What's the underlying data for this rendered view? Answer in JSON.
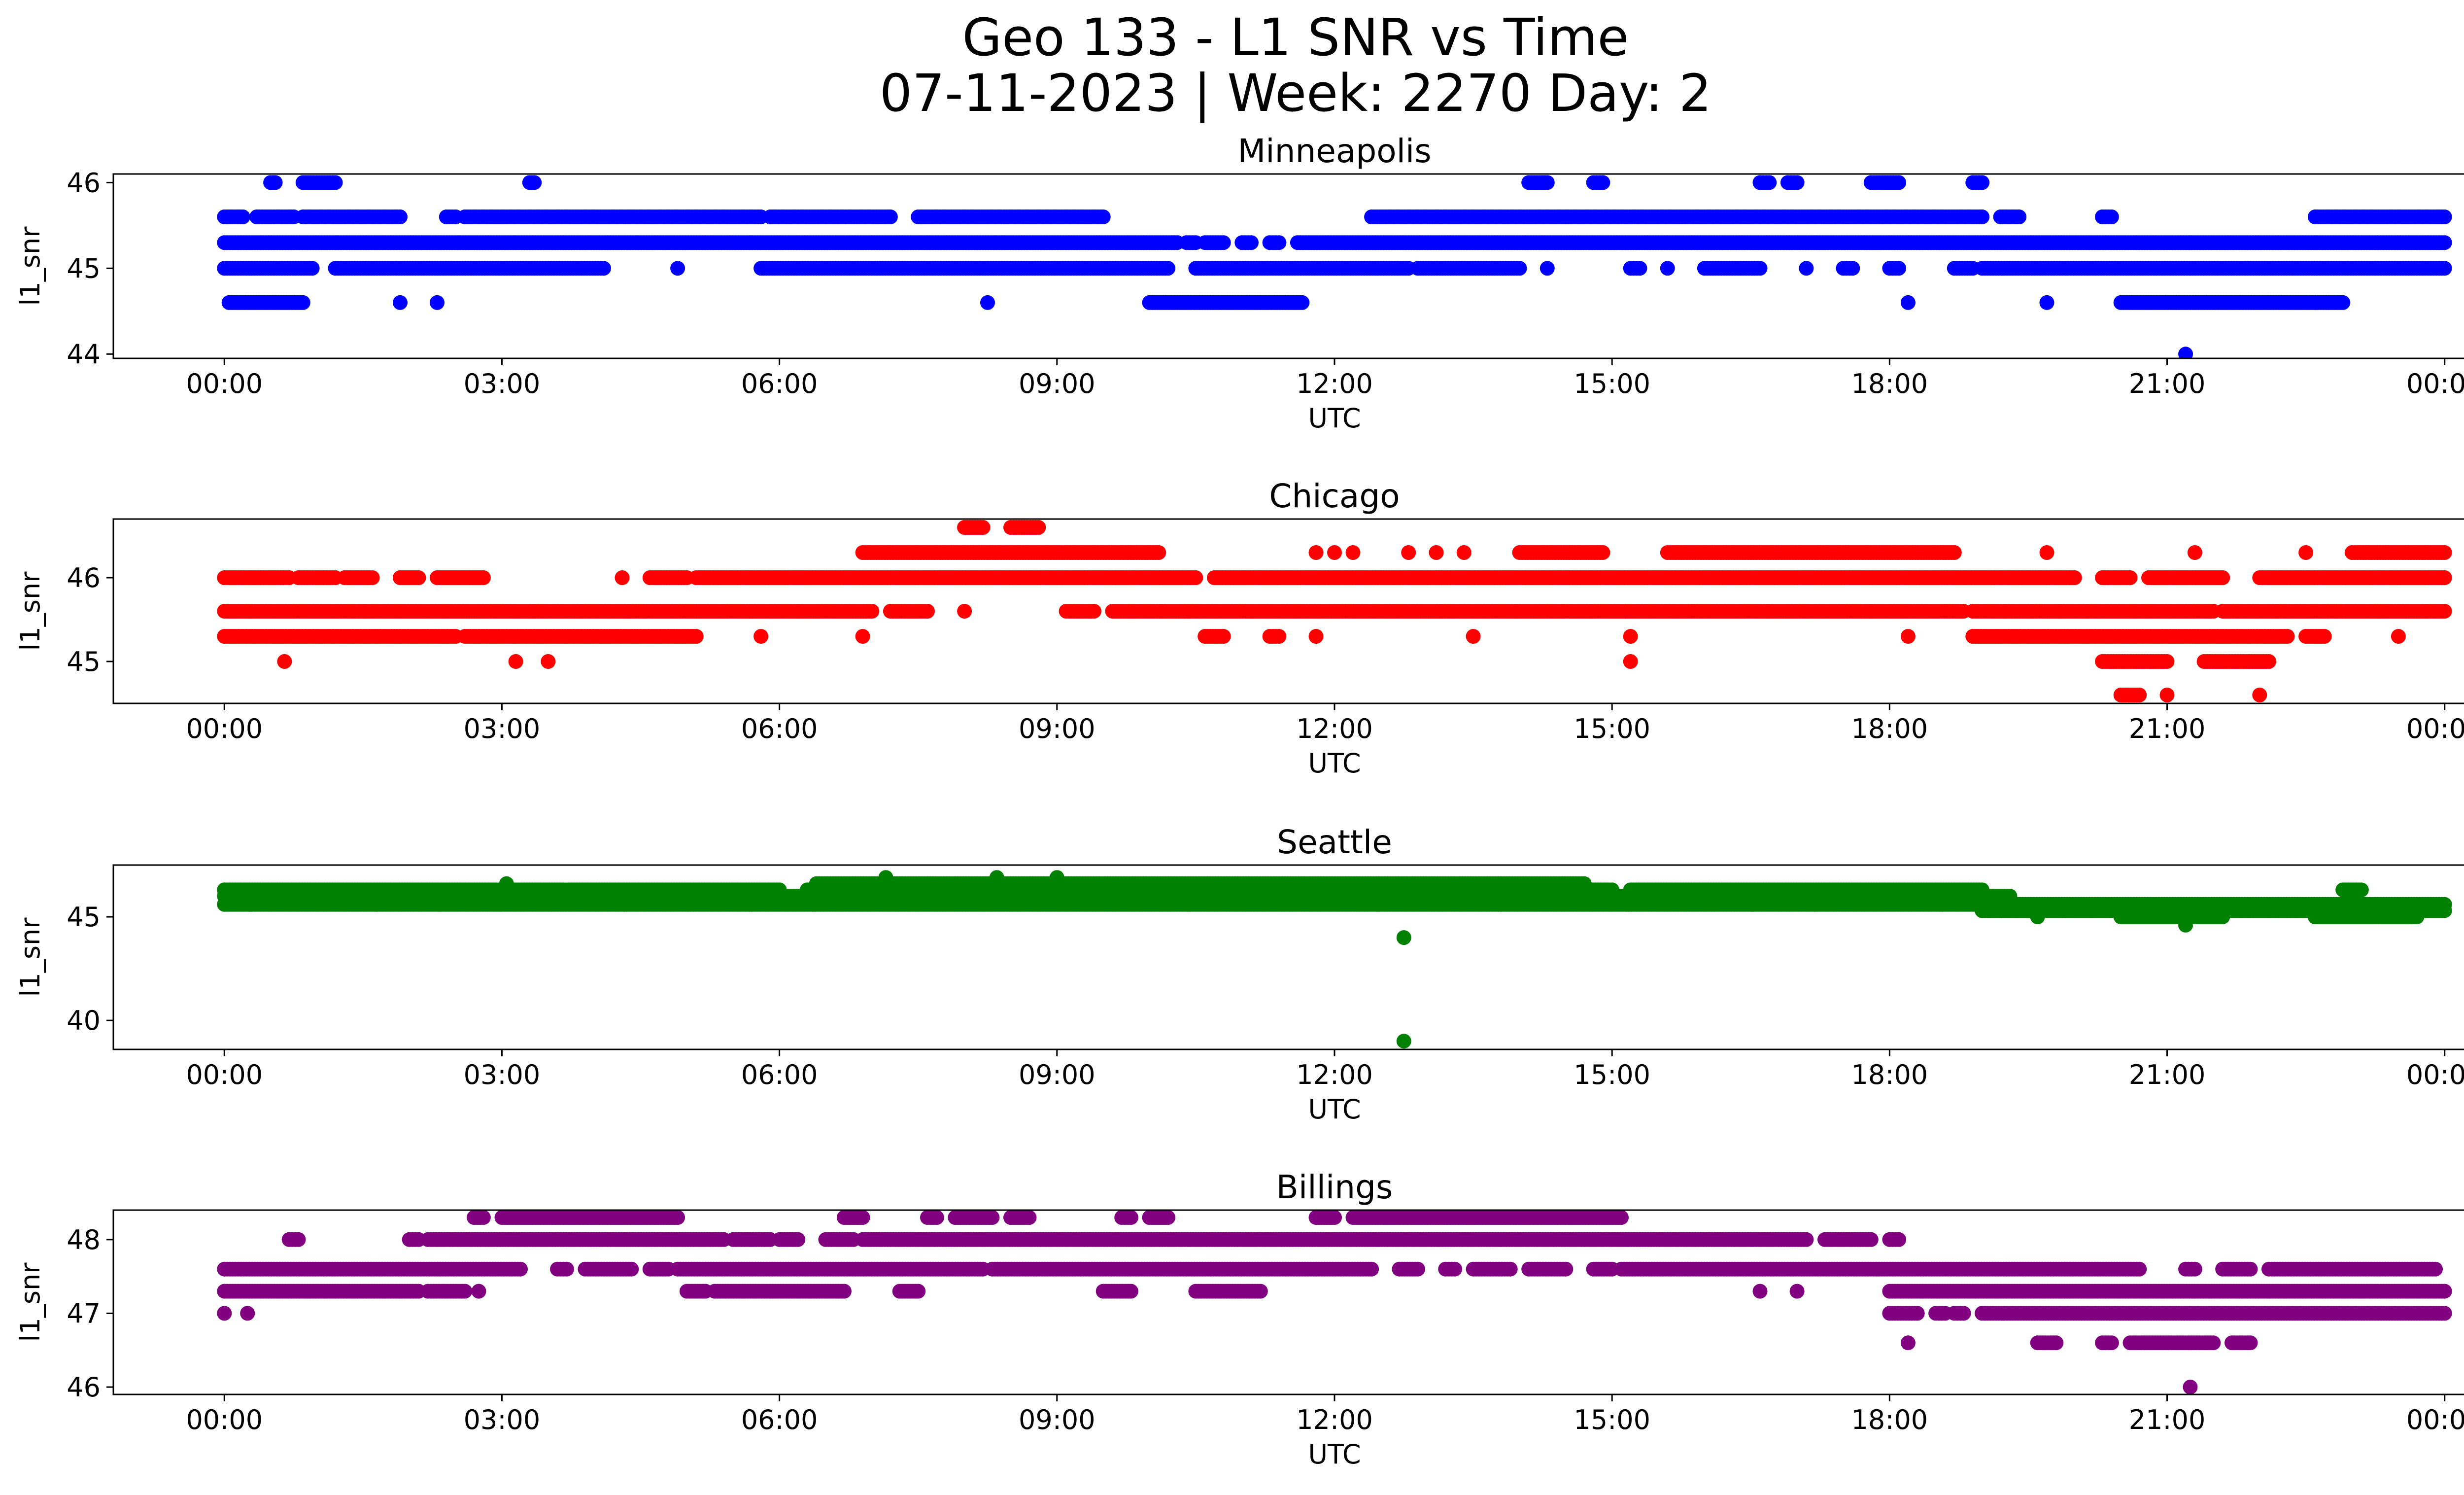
{
  "figure": {
    "title_line1": "Geo 133 - L1 SNR vs Time",
    "title_line2": "07-11-2023 | Week: 2270 Day: 2"
  },
  "chart_data": [
    {
      "type": "scatter",
      "title": "Minneapolis",
      "xlabel": "UTC",
      "ylabel": "l1_snr",
      "color": "#0000ff",
      "x_unit": "hours UTC",
      "xlim": [
        -1.2,
        25.2
      ],
      "ylim": [
        43.95,
        46.1
      ],
      "xticks": [
        0,
        3,
        6,
        9,
        12,
        15,
        18,
        21,
        24
      ],
      "xtick_labels": [
        "00:00",
        "03:00",
        "06:00",
        "09:00",
        "12:00",
        "15:00",
        "18:00",
        "21:00",
        "00:00"
      ],
      "yticks": [
        44,
        45,
        46
      ],
      "ytick_labels": [
        "44",
        "45",
        "46"
      ],
      "bands": [
        {
          "y": 45.3,
          "segments": [
            [
              0,
              10.3
            ],
            [
              10.4,
              10.5
            ],
            [
              10.6,
              10.8
            ],
            [
              11.0,
              11.1
            ],
            [
              11.3,
              11.4
            ],
            [
              11.6,
              24
            ]
          ]
        },
        {
          "y": 45.6,
          "segments": [
            [
              0.0,
              0.2
            ],
            [
              0.35,
              0.75
            ],
            [
              0.85,
              1.9
            ],
            [
              2.4,
              2.5
            ],
            [
              2.6,
              5.8
            ],
            [
              5.9,
              7.2
            ],
            [
              7.5,
              9.5
            ],
            [
              12.4,
              19.0
            ],
            [
              19.2,
              19.4
            ],
            [
              20.3,
              20.4
            ],
            [
              22.6,
              24
            ]
          ]
        },
        {
          "y": 45.0,
          "segments": [
            [
              0,
              0.95
            ],
            [
              1.2,
              4.1
            ],
            [
              5.8,
              10.2
            ],
            [
              10.5,
              12.8
            ],
            [
              12.9,
              14.0
            ],
            [
              15.2,
              15.3
            ],
            [
              16.0,
              16.6
            ],
            [
              17.5,
              17.6
            ],
            [
              18.0,
              18.1
            ],
            [
              18.7,
              18.9
            ],
            [
              19.0,
              24
            ]
          ]
        },
        {
          "y": 44.6,
          "segments": [
            [
              0.05,
              0.85
            ],
            [
              10.0,
              11.65
            ],
            [
              20.5,
              22.9
            ]
          ]
        },
        {
          "y": 46.0,
          "segments": [
            [
              0.5,
              0.55
            ],
            [
              0.85,
              1.2
            ],
            [
              3.3,
              3.35
            ],
            [
              14.1,
              14.3
            ],
            [
              14.8,
              14.9
            ],
            [
              16.6,
              16.7
            ],
            [
              16.9,
              17.0
            ],
            [
              17.8,
              18.1
            ],
            [
              18.9,
              19.0
            ]
          ]
        }
      ],
      "points": [
        {
          "x": 1.9,
          "y": 44.6
        },
        {
          "x": 2.3,
          "y": 44.6
        },
        {
          "x": 8.25,
          "y": 44.6
        },
        {
          "x": 18.2,
          "y": 44.6
        },
        {
          "x": 19.7,
          "y": 44.6
        },
        {
          "x": 21.2,
          "y": 44.0
        },
        {
          "x": 4.9,
          "y": 45.0
        },
        {
          "x": 14.3,
          "y": 45.0
        },
        {
          "x": 15.6,
          "y": 45.0
        },
        {
          "x": 17.1,
          "y": 45.0
        }
      ]
    },
    {
      "type": "scatter",
      "title": "Chicago",
      "xlabel": "UTC",
      "ylabel": "l1_snr",
      "color": "#ff0000",
      "x_unit": "hours UTC",
      "xlim": [
        -1.2,
        25.2
      ],
      "ylim": [
        44.5,
        46.7
      ],
      "xticks": [
        0,
        3,
        6,
        9,
        12,
        15,
        18,
        21,
        24
      ],
      "xtick_labels": [
        "00:00",
        "03:00",
        "06:00",
        "09:00",
        "12:00",
        "15:00",
        "18:00",
        "21:00",
        "00:00"
      ],
      "yticks": [
        45,
        46
      ],
      "ytick_labels": [
        "45",
        "46"
      ],
      "bands": [
        {
          "y": 45.6,
          "segments": [
            [
              0,
              7.0
            ],
            [
              7.2,
              7.6
            ],
            [
              9.1,
              9.4
            ],
            [
              9.6,
              18.8
            ],
            [
              18.9,
              21.5
            ],
            [
              21.6,
              24
            ]
          ]
        },
        {
          "y": 45.3,
          "segments": [
            [
              0,
              2.5
            ],
            [
              2.6,
              5.1
            ],
            [
              10.6,
              10.8
            ],
            [
              11.3,
              11.4
            ],
            [
              18.9,
              22.3
            ],
            [
              22.5,
              22.7
            ]
          ]
        },
        {
          "y": 46.0,
          "segments": [
            [
              0,
              0.7
            ],
            [
              0.8,
              1.2
            ],
            [
              1.3,
              1.6
            ],
            [
              1.9,
              2.1
            ],
            [
              2.3,
              2.8
            ],
            [
              4.6,
              5.0
            ],
            [
              5.1,
              10.5
            ],
            [
              10.7,
              20.0
            ],
            [
              20.3,
              20.6
            ],
            [
              20.8,
              21.6
            ],
            [
              22.0,
              24
            ]
          ]
        },
        {
          "y": 46.3,
          "segments": [
            [
              6.9,
              10.1
            ],
            [
              14.0,
              14.9
            ],
            [
              15.6,
              18.7
            ],
            [
              23.0,
              24
            ]
          ]
        },
        {
          "y": 46.6,
          "segments": [
            [
              8.0,
              8.2
            ],
            [
              8.5,
              8.8
            ]
          ]
        },
        {
          "y": 45.0,
          "segments": [
            [
              20.3,
              21.0
            ],
            [
              21.4,
              22.1
            ]
          ]
        },
        {
          "y": 44.6,
          "segments": [
            [
              20.5,
              20.7
            ]
          ]
        }
      ],
      "points": [
        {
          "x": 0.65,
          "y": 45.0
        },
        {
          "x": 3.15,
          "y": 45.0
        },
        {
          "x": 3.5,
          "y": 45.0
        },
        {
          "x": 15.2,
          "y": 45.0
        },
        {
          "x": 4.3,
          "y": 46.0
        },
        {
          "x": 5.8,
          "y": 45.3
        },
        {
          "x": 6.9,
          "y": 45.3
        },
        {
          "x": 8.0,
          "y": 45.6
        },
        {
          "x": 11.8,
          "y": 45.3
        },
        {
          "x": 13.5,
          "y": 45.3
        },
        {
          "x": 15.2,
          "y": 45.3
        },
        {
          "x": 18.2,
          "y": 45.3
        },
        {
          "x": 23.5,
          "y": 45.3
        },
        {
          "x": 11.8,
          "y": 46.3
        },
        {
          "x": 12.0,
          "y": 46.3
        },
        {
          "x": 12.2,
          "y": 46.3
        },
        {
          "x": 12.8,
          "y": 46.3
        },
        {
          "x": 13.1,
          "y": 46.3
        },
        {
          "x": 13.4,
          "y": 46.3
        },
        {
          "x": 19.7,
          "y": 46.3
        },
        {
          "x": 21.3,
          "y": 46.3
        },
        {
          "x": 22.5,
          "y": 46.3
        },
        {
          "x": 21.0,
          "y": 44.6
        },
        {
          "x": 22.0,
          "y": 44.6
        }
      ]
    },
    {
      "type": "scatter",
      "title": "Seattle",
      "xlabel": "UTC",
      "ylabel": "l1_snr",
      "color": "#008000",
      "x_unit": "hours UTC",
      "xlim": [
        -1.2,
        25.2
      ],
      "ylim": [
        38.6,
        47.5
      ],
      "xticks": [
        0,
        3,
        6,
        9,
        12,
        15,
        18,
        21,
        24
      ],
      "xtick_labels": [
        "00:00",
        "03:00",
        "06:00",
        "09:00",
        "12:00",
        "15:00",
        "18:00",
        "21:00",
        "00:00"
      ],
      "yticks": [
        40,
        45
      ],
      "ytick_labels": [
        "40",
        "45"
      ],
      "bands": [
        {
          "y": 46.0,
          "segments": [
            [
              0,
              19.3
            ]
          ]
        },
        {
          "y": 45.6,
          "segments": [
            [
              0,
              24
            ]
          ]
        },
        {
          "y": 46.3,
          "segments": [
            [
              0,
              6.0
            ],
            [
              6.3,
              15.0
            ],
            [
              15.2,
              19.0
            ],
            [
              22.9,
              23.1
            ]
          ]
        },
        {
          "y": 46.6,
          "segments": [
            [
              6.4,
              14.7
            ]
          ]
        },
        {
          "y": 45.3,
          "segments": [
            [
              19.0,
              24
            ]
          ]
        },
        {
          "y": 45.0,
          "segments": [
            [
              20.5,
              21.6
            ],
            [
              22.6,
              23.7
            ]
          ]
        }
      ],
      "points": [
        {
          "x": 7.15,
          "y": 46.9
        },
        {
          "x": 8.35,
          "y": 46.9
        },
        {
          "x": 9.0,
          "y": 46.9
        },
        {
          "x": 0.0,
          "y": 46.3
        },
        {
          "x": 3.05,
          "y": 46.6
        },
        {
          "x": 19.6,
          "y": 45.0
        },
        {
          "x": 21.2,
          "y": 44.6
        },
        {
          "x": 23.6,
          "y": 45.0
        },
        {
          "x": 12.75,
          "y": 44.0
        },
        {
          "x": 12.75,
          "y": 39.0
        }
      ]
    },
    {
      "type": "scatter",
      "title": "Billings",
      "xlabel": "UTC",
      "ylabel": "l1_snr",
      "color": "#800080",
      "x_unit": "hours UTC",
      "xlim": [
        -1.2,
        25.2
      ],
      "ylim": [
        45.9,
        48.4
      ],
      "xticks": [
        0,
        3,
        6,
        9,
        12,
        15,
        18,
        21,
        24
      ],
      "xtick_labels": [
        "00:00",
        "03:00",
        "06:00",
        "09:00",
        "12:00",
        "15:00",
        "18:00",
        "21:00",
        "00:00"
      ],
      "yticks": [
        46,
        47,
        48
      ],
      "ytick_labels": [
        "46",
        "47",
        "48"
      ],
      "bands": [
        {
          "y": 47.3,
          "segments": [
            [
              0,
              2.1
            ],
            [
              2.2,
              2.6
            ],
            [
              5.0,
              5.2
            ],
            [
              5.3,
              6.7
            ],
            [
              7.3,
              7.5
            ],
            [
              9.5,
              9.8
            ],
            [
              10.5,
              11.2
            ],
            [
              18.0,
              24
            ]
          ]
        },
        {
          "y": 47.6,
          "segments": [
            [
              0,
              3.2
            ],
            [
              3.6,
              3.7
            ],
            [
              3.9,
              4.4
            ],
            [
              4.6,
              4.8
            ],
            [
              4.9,
              8.2
            ],
            [
              8.3,
              12.4
            ],
            [
              12.7,
              12.9
            ],
            [
              13.2,
              13.3
            ],
            [
              13.5,
              13.9
            ],
            [
              14.1,
              14.5
            ],
            [
              14.8,
              15.0
            ],
            [
              15.1,
              20.7
            ],
            [
              21.2,
              21.3
            ],
            [
              21.6,
              21.9
            ],
            [
              22.1,
              23.9
            ]
          ]
        },
        {
          "y": 48.0,
          "segments": [
            [
              0.7,
              0.8
            ],
            [
              2.0,
              2.1
            ],
            [
              2.2,
              5.4
            ],
            [
              5.5,
              5.9
            ],
            [
              6.0,
              6.2
            ],
            [
              6.5,
              6.8
            ],
            [
              6.9,
              17.1
            ],
            [
              17.3,
              17.8
            ],
            [
              18.0,
              18.1
            ]
          ]
        },
        {
          "y": 48.3,
          "segments": [
            [
              2.7,
              2.8
            ],
            [
              3.0,
              4.9
            ],
            [
              6.7,
              6.9
            ],
            [
              7.6,
              7.7
            ],
            [
              7.9,
              8.3
            ],
            [
              8.5,
              8.7
            ],
            [
              9.7,
              9.8
            ],
            [
              10.0,
              10.2
            ],
            [
              11.8,
              12.0
            ],
            [
              12.2,
              15.1
            ]
          ]
        },
        {
          "y": 47.0,
          "segments": [
            [
              18.0,
              18.3
            ],
            [
              18.5,
              18.6
            ],
            [
              18.7,
              18.8
            ],
            [
              19.0,
              24
            ]
          ]
        },
        {
          "y": 46.6,
          "segments": [
            [
              19.6,
              19.8
            ],
            [
              20.3,
              20.4
            ],
            [
              20.6,
              21.5
            ],
            [
              21.7,
              21.9
            ]
          ]
        }
      ],
      "points": [
        {
          "x": 0.0,
          "y": 47.0
        },
        {
          "x": 0.25,
          "y": 47.0
        },
        {
          "x": 2.75,
          "y": 47.3
        },
        {
          "x": 18.2,
          "y": 46.6
        },
        {
          "x": 21.25,
          "y": 46.0
        },
        {
          "x": 16.6,
          "y": 47.3
        },
        {
          "x": 17.0,
          "y": 47.3
        }
      ]
    }
  ]
}
